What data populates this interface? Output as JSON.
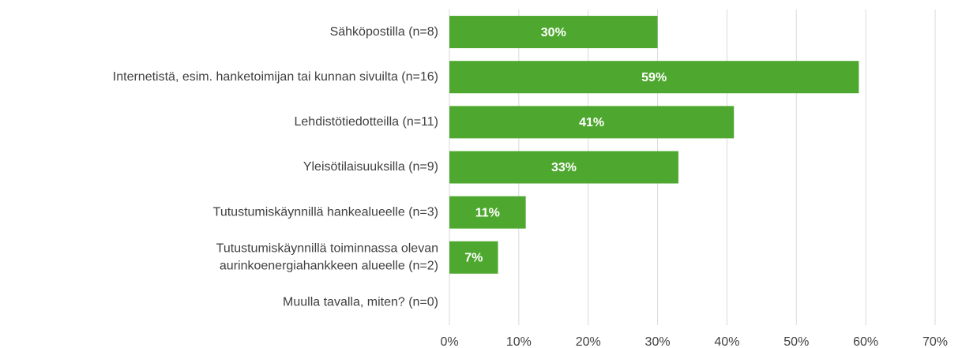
{
  "chart_data": {
    "type": "barh",
    "categories": [
      "Sähköpostilla (n=8)",
      "Internetistä, esim. hanketoimijan tai kunnan sivuilta (n=16)",
      "Lehdistötiedotteilla (n=11)",
      "Yleisötilaisuuksilla (n=9)",
      "Tutustumiskäynnillä hankealueelle (n=3)",
      "Tutustumiskäynnillä toiminnassa olevan\naurinkoenergiahankkeen alueelle (n=2)",
      "Muulla tavalla, miten? (n=0)"
    ],
    "values": [
      30,
      59,
      41,
      33,
      11,
      7,
      0
    ],
    "value_labels": [
      "30%",
      "59%",
      "41%",
      "33%",
      "11%",
      "7%",
      null
    ],
    "color": "#4ea72e",
    "xlim": [
      0,
      70
    ],
    "xticks": [
      {
        "value": 0,
        "label": "0%"
      },
      {
        "value": 10,
        "label": "10%"
      },
      {
        "value": 20,
        "label": "20%"
      },
      {
        "value": 30,
        "label": "30%"
      },
      {
        "value": 40,
        "label": "40%"
      },
      {
        "value": 50,
        "label": "50%"
      },
      {
        "value": 60,
        "label": "60%"
      },
      {
        "value": 70,
        "label": "70%"
      }
    ],
    "grid": true
  }
}
